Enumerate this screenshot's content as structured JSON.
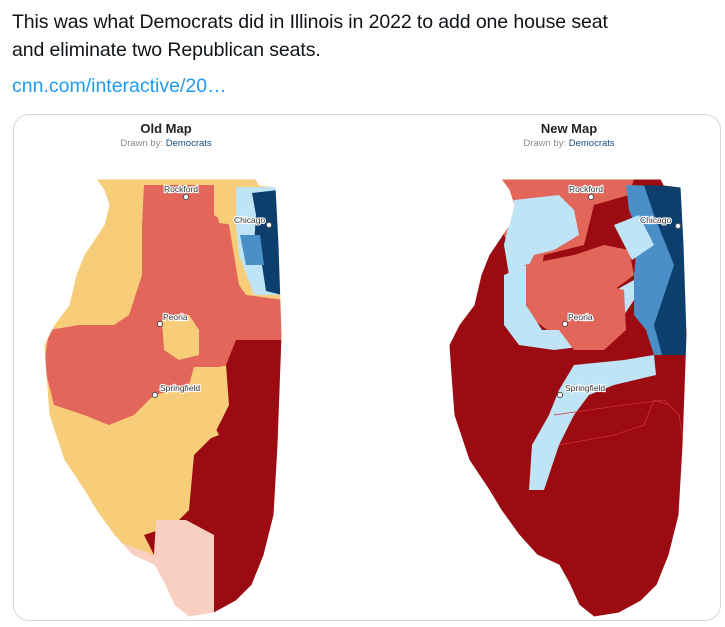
{
  "tweet": {
    "line1": "This was what Democrats did in Illinois in 2022 to add one house seat",
    "line2": "and eliminate two Republican seats.",
    "link": "cnn.com/interactive/20…"
  },
  "maps": {
    "old": {
      "title": "Old Map",
      "drawn_by_label": "Drawn by:",
      "drawn_by": "Democrats"
    },
    "new": {
      "title": "New Map",
      "drawn_by_label": "Drawn by:",
      "drawn_by": "Democrats"
    }
  },
  "cities": {
    "rockford": "Rockford",
    "chicago": "Chicago",
    "peoria": "Peoria",
    "springfield": "Springfield"
  },
  "colors": {
    "solid_republican": "#9c0b12",
    "lean_republican": "#e2665a",
    "tossup": "#f7cd7a",
    "light_republican": "#f9cfc2",
    "light_democrat": "#bfe4f5",
    "lean_democrat": "#4a8fc7",
    "solid_democrat": "#0d3f6c"
  }
}
